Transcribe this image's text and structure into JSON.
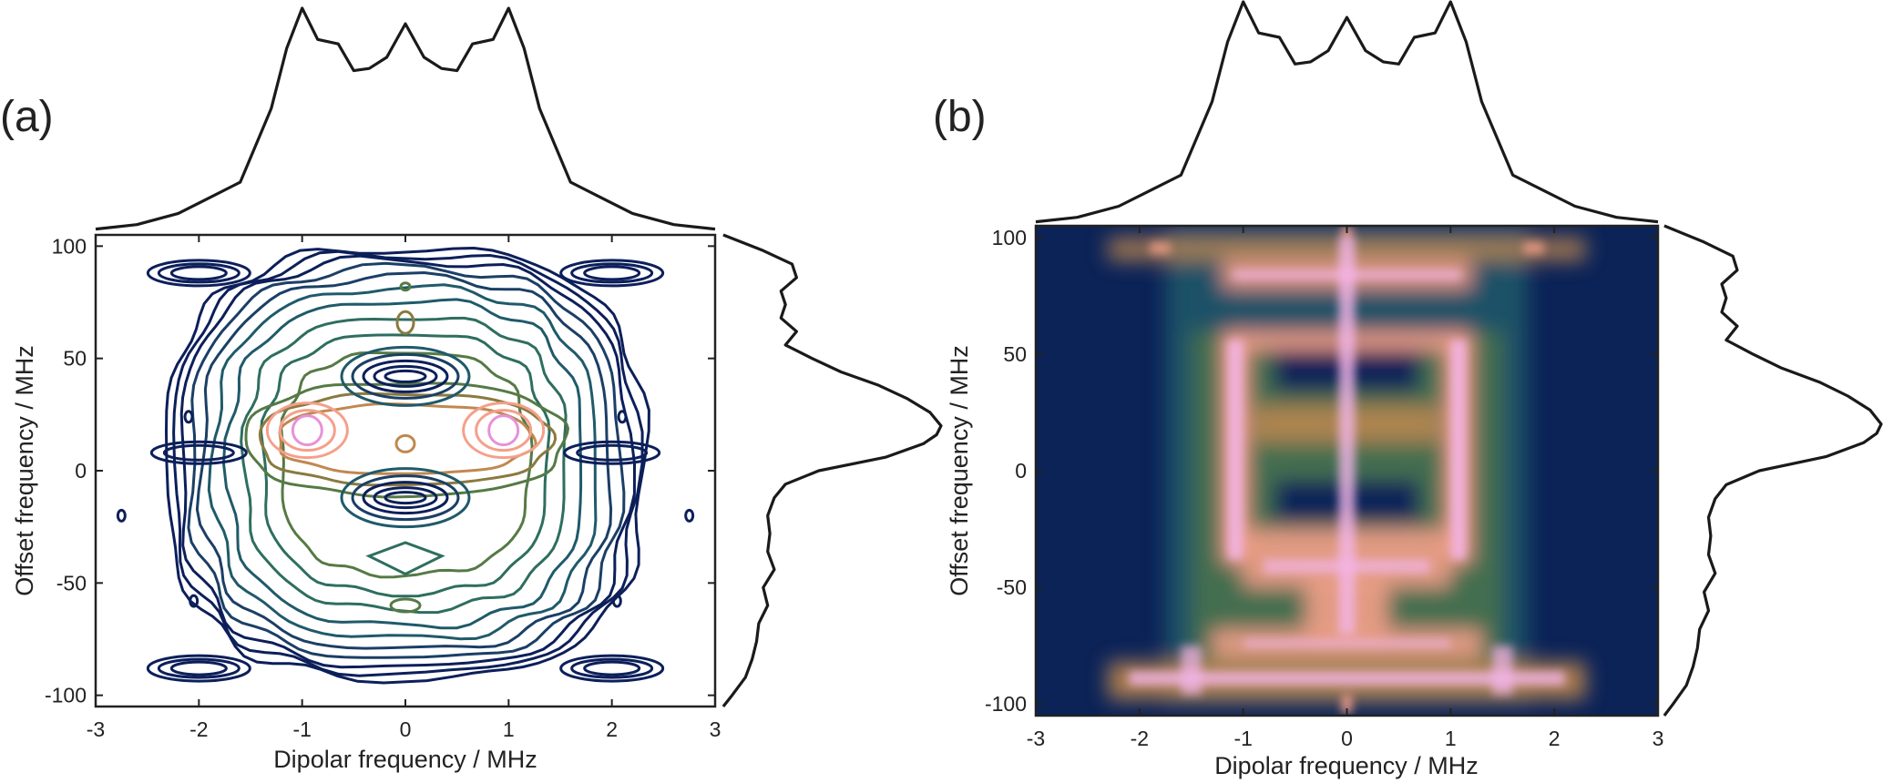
{
  "chart_data": [
    {
      "panel": "(a)",
      "type": "contour",
      "xlabel": "Dipolar frequency / MHz",
      "ylabel": "Offset frequency / MHz",
      "xlim": [
        -3,
        3
      ],
      "ylim": [
        -105,
        105
      ],
      "xticks": [
        "-3",
        "-2",
        "-1",
        "0",
        "1",
        "2",
        "3"
      ],
      "yticks": [
        "-100",
        "-50",
        "0",
        "50",
        "100"
      ],
      "contour_levels": 12,
      "colormap": [
        "#0c1f5a",
        "#1b3f66",
        "#1f5a6a",
        "#2e6e5e",
        "#557a45",
        "#8a7a40",
        "#c08850",
        "#f4a08a",
        "#e891d9"
      ],
      "peaks": [
        {
          "x": -0.95,
          "y": 18
        },
        {
          "x": 0.95,
          "y": 18
        },
        {
          "x": 0,
          "y": 62
        },
        {
          "x": 0,
          "y": -60
        }
      ]
    },
    {
      "panel": "(b)",
      "type": "heatmap",
      "xlabel": "Dipolar frequency / MHz",
      "ylabel": "Offset frequency / MHz",
      "xlim": [
        -3,
        3
      ],
      "ylim": [
        -105,
        105
      ],
      "xticks": [
        "-3",
        "-2",
        "-1",
        "0",
        "1",
        "2",
        "3"
      ],
      "yticks": [
        "-100",
        "-50",
        "0",
        "50",
        "100"
      ],
      "colormap": [
        "#0c2358",
        "#1f5a6a",
        "#557a45",
        "#c08850",
        "#f4a08a",
        "#f4b5ea"
      ]
    }
  ],
  "marginal_projections": {
    "top": {
      "axis": "dipolar",
      "x": [
        -3,
        -2.6,
        -2.2,
        -1.9,
        -1.6,
        -1.3,
        -1.15,
        -1.0,
        -0.85,
        -0.65,
        -0.5,
        -0.35,
        -0.18,
        0,
        0.18,
        0.35,
        0.5,
        0.65,
        0.85,
        1.0,
        1.15,
        1.3,
        1.6,
        1.9,
        2.2,
        2.6,
        3
      ],
      "y": [
        0.01,
        0.03,
        0.08,
        0.15,
        0.22,
        0.55,
        0.82,
        1.0,
        0.86,
        0.84,
        0.72,
        0.73,
        0.78,
        0.93,
        0.78,
        0.73,
        0.72,
        0.84,
        0.86,
        1.0,
        0.82,
        0.55,
        0.22,
        0.15,
        0.08,
        0.03,
        0.01
      ]
    },
    "right": {
      "axis": "offset",
      "y": [
        105,
        98,
        92,
        86,
        80,
        74,
        68,
        62,
        56,
        50,
        44,
        38,
        32,
        26,
        20,
        16,
        12,
        6,
        0,
        -6,
        -12,
        -20,
        -28,
        -36,
        -44,
        -52,
        -60,
        -68,
        -76,
        -84,
        -92,
        -100,
        -105
      ],
      "x": [
        0.02,
        0.2,
        0.33,
        0.35,
        0.28,
        0.3,
        0.28,
        0.35,
        0.3,
        0.42,
        0.55,
        0.72,
        0.85,
        0.95,
        1.0,
        0.98,
        0.92,
        0.75,
        0.45,
        0.3,
        0.25,
        0.22,
        0.23,
        0.22,
        0.25,
        0.2,
        0.22,
        0.18,
        0.17,
        0.15,
        0.12,
        0.06,
        0.02
      ]
    }
  }
}
